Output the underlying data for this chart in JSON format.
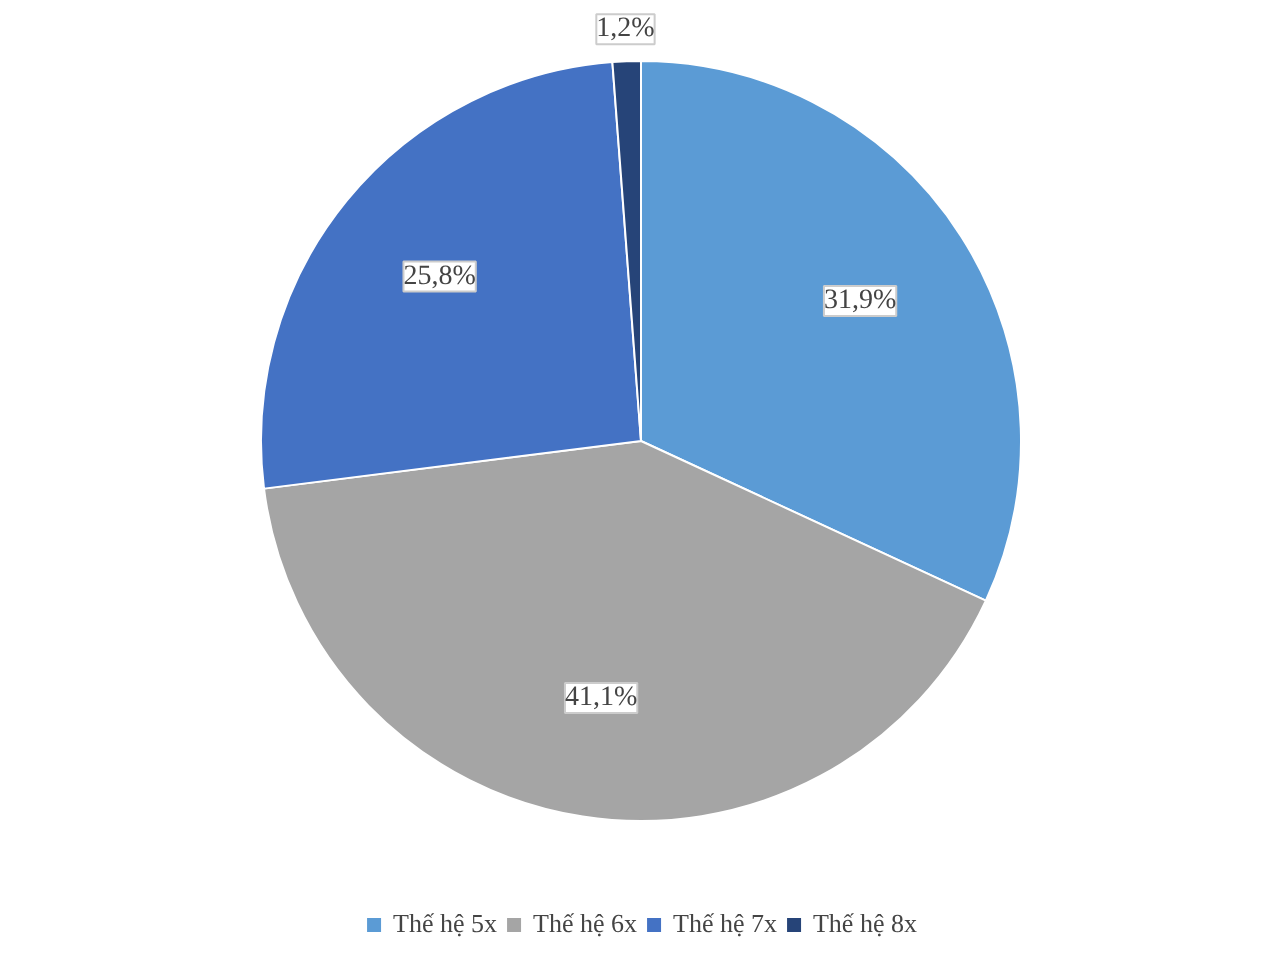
{
  "chart_data": {
    "type": "pie",
    "categories": [
      "Thế hệ 5x",
      "Thế hệ 6x",
      "Thế hệ 7x",
      "Thế hệ 8x"
    ],
    "values": [
      31.9,
      41.1,
      25.8,
      1.2
    ],
    "colors": [
      "#5b9bd5",
      "#a5a5a5",
      "#4472c4",
      "#264478"
    ],
    "value_labels": [
      "31,9%",
      "41,1%",
      "25,8%",
      "1,2%"
    ],
    "legend": "bottom"
  }
}
